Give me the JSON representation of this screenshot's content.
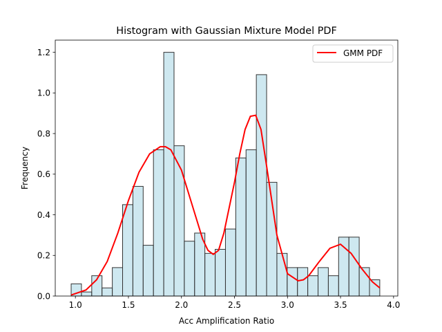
{
  "chart_data": {
    "type": "bar",
    "title": "Histogram with Gaussian Mixture Model PDF",
    "xlabel": "Acc Amplification Ratio",
    "ylabel": "Frequency",
    "xlim": [
      0.81,
      4.04
    ],
    "ylim": [
      0,
      1.26
    ],
    "x_ticks": [
      1.0,
      1.5,
      2.0,
      2.5,
      3.0,
      3.5,
      4.0
    ],
    "y_ticks": [
      0.0,
      0.2,
      0.4,
      0.6,
      0.8,
      1.0,
      1.2
    ],
    "x_tick_labels": [
      "1.0",
      "1.5",
      "2.0",
      "2.5",
      "3.0",
      "3.5",
      "4.0"
    ],
    "y_tick_labels": [
      "0.0",
      "0.2",
      "0.4",
      "0.6",
      "0.8",
      "1.0",
      "1.2"
    ],
    "grid": false,
    "legend": {
      "position": "top-right",
      "entries": [
        "GMM PDF"
      ]
    },
    "histogram": {
      "bin_edges": [
        0.96,
        1.057,
        1.154,
        1.251,
        1.348,
        1.445,
        1.542,
        1.639,
        1.736,
        1.833,
        1.93,
        2.027,
        2.124,
        2.221,
        2.318,
        2.415,
        2.512,
        2.609,
        2.706,
        2.803,
        2.9,
        2.997,
        3.094,
        3.191,
        3.288,
        3.385,
        3.482,
        3.579,
        3.676,
        3.773,
        3.87
      ],
      "values": [
        0.06,
        0.02,
        0.1,
        0.04,
        0.14,
        0.45,
        0.54,
        0.25,
        0.72,
        1.2,
        0.74,
        0.27,
        0.31,
        0.21,
        0.23,
        0.33,
        0.68,
        0.72,
        1.09,
        0.56,
        0.21,
        0.14,
        0.14,
        0.1,
        0.14,
        0.1,
        0.29,
        0.29,
        0.14,
        0.08
      ],
      "fill": "#add8e6",
      "edge": "#333333"
    },
    "series": [
      {
        "name": "GMM PDF",
        "color": "#ff0000",
        "x": [
          0.96,
          1.1,
          1.2,
          1.3,
          1.4,
          1.5,
          1.6,
          1.7,
          1.8,
          1.85,
          1.9,
          2.0,
          2.1,
          2.2,
          2.25,
          2.3,
          2.35,
          2.4,
          2.5,
          2.55,
          2.6,
          2.65,
          2.7,
          2.75,
          2.8,
          2.9,
          3.0,
          3.1,
          3.15,
          3.2,
          3.3,
          3.4,
          3.5,
          3.6,
          3.7,
          3.8,
          3.87
        ],
        "y": [
          0.005,
          0.03,
          0.08,
          0.17,
          0.31,
          0.47,
          0.61,
          0.7,
          0.735,
          0.735,
          0.72,
          0.62,
          0.45,
          0.28,
          0.225,
          0.205,
          0.225,
          0.31,
          0.56,
          0.7,
          0.82,
          0.885,
          0.89,
          0.82,
          0.65,
          0.3,
          0.11,
          0.075,
          0.08,
          0.1,
          0.17,
          0.235,
          0.255,
          0.21,
          0.135,
          0.07,
          0.04
        ]
      }
    ]
  }
}
